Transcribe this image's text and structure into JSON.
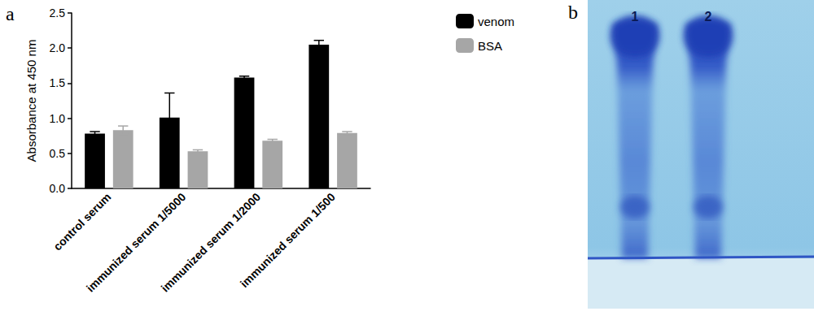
{
  "chart_data": {
    "type": "bar",
    "title": "a",
    "y_label": "Absorbance at 450 nm",
    "categories": [
      "control serum",
      "immunized serum 1/5000",
      "immunized serum 1/2000",
      "immunized serum 1/500"
    ],
    "series": [
      {
        "name": "venom",
        "color": "#000000",
        "values": [
          0.78,
          1.01,
          1.58,
          2.05
        ],
        "errors": [
          0.03,
          0.35,
          0.02,
          0.06
        ]
      },
      {
        "name": "BSA",
        "color": "#a6a6a6",
        "values": [
          0.83,
          0.53,
          0.68,
          0.79
        ],
        "errors": [
          0.06,
          0.02,
          0.02,
          0.02
        ]
      }
    ],
    "ylim": [
      0,
      2.5
    ],
    "yticks": [
      {
        "value": 0,
        "label": "0.0"
      },
      0.5,
      {
        "value": 1,
        "label": "1.0"
      },
      1.5,
      {
        "value": 2,
        "label": "2.0"
      },
      2.5
    ],
    "grid": false,
    "legend": "upper right"
  },
  "gel": {
    "label": "b",
    "lanes": [
      "1",
      "2"
    ]
  }
}
